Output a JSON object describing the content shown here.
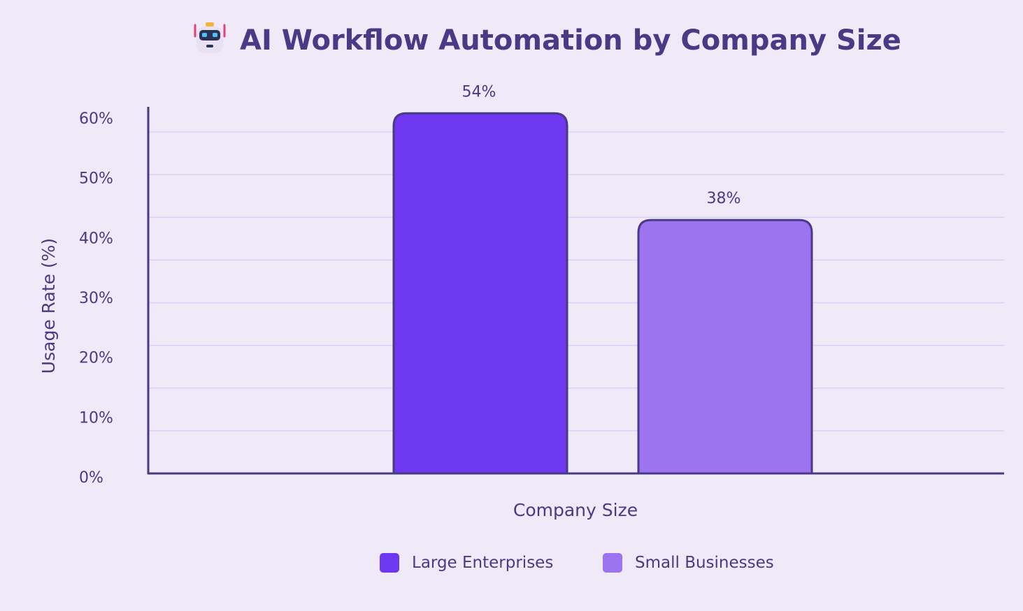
{
  "title": {
    "icon": "robot-emoji",
    "text": "AI Workflow Automation by Company Size"
  },
  "colors": {
    "background": "#efe9f8",
    "text": "#4a3a86",
    "axis": "#4a3a86",
    "grid": "#d9d1f7",
    "bar_stroke": "#4a3a86"
  },
  "chart_data": {
    "type": "bar",
    "title": "AI Workflow Automation by Company Size",
    "xlabel": "Company Size",
    "ylabel": "Usage Rate (%)",
    "categories": [
      "Large Enterprises",
      "Small Businesses"
    ],
    "values": [
      54,
      38
    ],
    "data_labels": [
      "54%",
      "38%"
    ],
    "bar_colors": [
      "#6e38f0",
      "#9d74f0"
    ],
    "ylim": [
      0,
      60
    ],
    "yticks": [
      0,
      10,
      20,
      30,
      40,
      50,
      60
    ],
    "ytick_labels": [
      "0%",
      "10%",
      "20%",
      "30%",
      "40%",
      "50%",
      "60%"
    ],
    "grid": true,
    "legend": {
      "position": "bottom-center",
      "entries": [
        {
          "label": "Large Enterprises",
          "color": "#6e38f0"
        },
        {
          "label": "Small Businesses",
          "color": "#9d74f0"
        }
      ]
    }
  }
}
